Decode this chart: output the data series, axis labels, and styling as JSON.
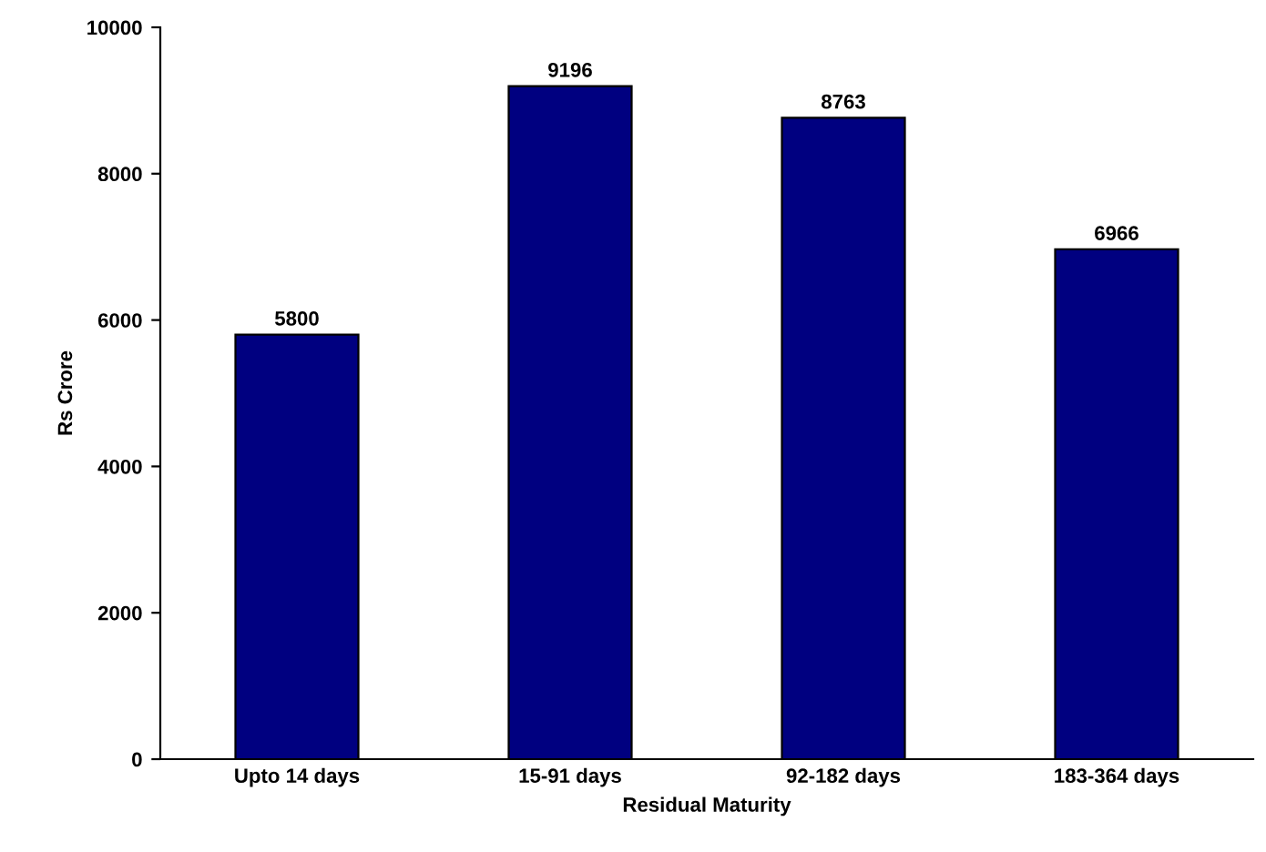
{
  "chart_data": {
    "type": "bar",
    "xlabel": "Residual Maturity",
    "ylabel": "Rs Crore",
    "categories": [
      "Upto 14 days",
      "15-91 days",
      "92-182 days",
      "183-364 days"
    ],
    "values": [
      5800,
      9196,
      8763,
      6966
    ],
    "color": "#000080",
    "ylim": [
      0,
      10000
    ],
    "yticks": [
      0,
      2000,
      4000,
      6000,
      8000,
      10000
    ],
    "data_labels": true,
    "grid": false
  }
}
